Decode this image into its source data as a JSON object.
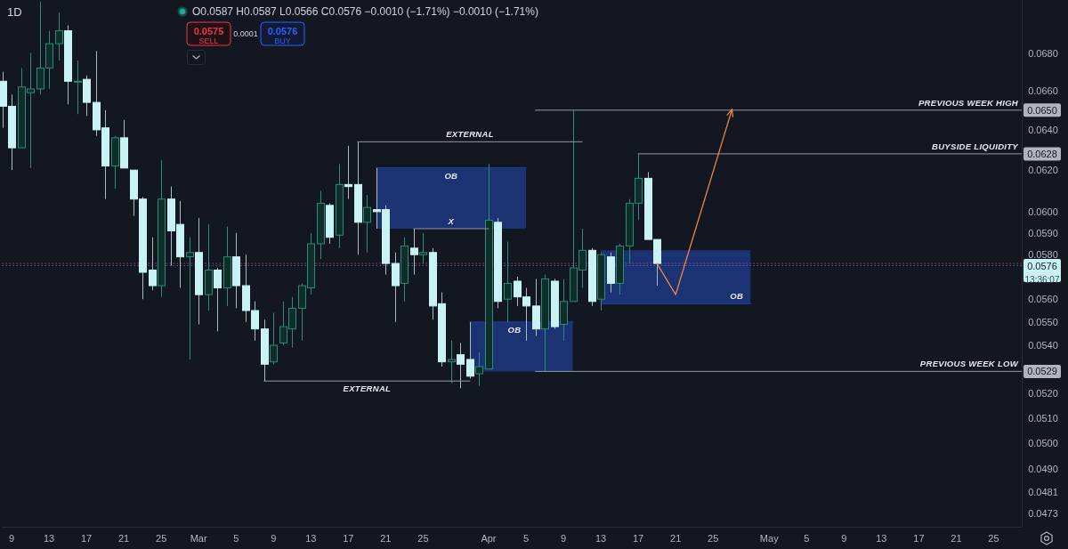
{
  "chart_data": {
    "type": "candlestick",
    "title": "1D",
    "subtitle": "O0.0587 H0.0587 L0.0566 C0.0576 −0.0010 (−1.71%) −0.0010 (−1.71%)",
    "x": [
      "--02-08",
      "--02-09",
      "--02-10",
      "--02-11",
      "--02-12",
      "--02-13",
      "--02-14",
      "--02-15",
      "--02-16",
      "--02-17",
      "--02-18",
      "--02-19",
      "--02-20",
      "--02-21",
      "--02-22",
      "--02-23",
      "--02-24",
      "--02-25",
      "--02-26",
      "--02-27",
      "--02-28",
      "--03-01",
      "--03-02",
      "--03-03",
      "--03-04",
      "--03-05",
      "--03-06",
      "--03-07",
      "--03-08",
      "--03-09",
      "--03-10",
      "--03-11",
      "--03-12",
      "--03-13",
      "--03-14",
      "--03-15",
      "--03-16",
      "--03-17",
      "--03-18",
      "--03-19",
      "--03-20",
      "--03-21",
      "--03-22",
      "--03-23",
      "--03-24",
      "--03-25",
      "--03-26",
      "--03-27",
      "--03-28",
      "--03-29",
      "--03-30",
      "--03-31",
      "--04-01",
      "--04-02",
      "--04-03",
      "--04-04",
      "--04-05",
      "--04-06",
      "--04-07",
      "--04-08",
      "--04-09",
      "--04-10",
      "--04-11",
      "--04-12",
      "--04-13",
      "--04-14",
      "--04-15",
      "--04-16",
      "--04-17",
      "--04-18",
      "--04-19"
    ],
    "ohlc": [
      [
        0.0665,
        0.067,
        0.0641,
        0.0652
      ],
      [
        0.0652,
        0.0658,
        0.062,
        0.0631
      ],
      [
        0.0631,
        0.0672,
        0.0631,
        0.0662
      ],
      [
        0.0659,
        0.068,
        0.0621,
        0.0661
      ],
      [
        0.0661,
        0.0708,
        0.0658,
        0.0672
      ],
      [
        0.0672,
        0.0692,
        0.0661,
        0.0685
      ],
      [
        0.0685,
        0.0702,
        0.0676,
        0.0692
      ],
      [
        0.0692,
        0.0695,
        0.0653,
        0.0665
      ],
      [
        0.0665,
        0.0676,
        0.0648,
        0.0665
      ],
      [
        0.0666,
        0.0668,
        0.0647,
        0.0654
      ],
      [
        0.0654,
        0.0681,
        0.0637,
        0.064
      ],
      [
        0.0641,
        0.065,
        0.0606,
        0.0622
      ],
      [
        0.0622,
        0.0637,
        0.0611,
        0.0636
      ],
      [
        0.0636,
        0.0645,
        0.0621,
        0.0621
      ],
      [
        0.062,
        0.062,
        0.0598,
        0.0606
      ],
      [
        0.0606,
        0.0607,
        0.056,
        0.0572
      ],
      [
        0.0573,
        0.0588,
        0.0564,
        0.0566
      ],
      [
        0.0566,
        0.0625,
        0.0561,
        0.0606
      ],
      [
        0.0606,
        0.0612,
        0.0575,
        0.0591
      ],
      [
        0.0594,
        0.0605,
        0.0565,
        0.0579
      ],
      [
        0.0579,
        0.0588,
        0.0534,
        0.0581
      ],
      [
        0.0581,
        0.0597,
        0.0549,
        0.0562
      ],
      [
        0.0562,
        0.0594,
        0.0555,
        0.0573
      ],
      [
        0.0573,
        0.0574,
        0.0546,
        0.0565
      ],
      [
        0.0565,
        0.0593,
        0.0557,
        0.0579
      ],
      [
        0.0579,
        0.059,
        0.0556,
        0.0566
      ],
      [
        0.0566,
        0.058,
        0.055,
        0.0555
      ],
      [
        0.0555,
        0.0559,
        0.0542,
        0.0547
      ],
      [
        0.0547,
        0.0551,
        0.0525,
        0.0532
      ],
      [
        0.0533,
        0.0554,
        0.0532,
        0.054
      ],
      [
        0.0541,
        0.0559,
        0.054,
        0.0548
      ],
      [
        0.0547,
        0.0561,
        0.0539,
        0.0556
      ],
      [
        0.0556,
        0.0567,
        0.0542,
        0.0566
      ],
      [
        0.0565,
        0.059,
        0.0562,
        0.0585
      ],
      [
        0.0585,
        0.061,
        0.0578,
        0.0604
      ],
      [
        0.0603,
        0.0604,
        0.0585,
        0.0588
      ],
      [
        0.0589,
        0.0623,
        0.0583,
        0.0613
      ],
      [
        0.0613,
        0.0632,
        0.0606,
        0.0612
      ],
      [
        0.0613,
        0.0634,
        0.058,
        0.0595
      ],
      [
        0.0595,
        0.0608,
        0.0581,
        0.0602
      ],
      [
        0.0601,
        0.0621,
        0.0592,
        0.06
      ],
      [
        0.0601,
        0.0603,
        0.0571,
        0.0576
      ],
      [
        0.0576,
        0.0581,
        0.055,
        0.0566
      ],
      [
        0.0567,
        0.0588,
        0.0559,
        0.0584
      ],
      [
        0.0583,
        0.0592,
        0.0571,
        0.058
      ],
      [
        0.058,
        0.059,
        0.0576,
        0.0581
      ],
      [
        0.0581,
        0.0583,
        0.0551,
        0.0557
      ],
      [
        0.0558,
        0.0563,
        0.0531,
        0.0533
      ],
      [
        0.0533,
        0.0542,
        0.0524,
        0.0534
      ],
      [
        0.0536,
        0.0541,
        0.0522,
        0.0532
      ],
      [
        0.0534,
        0.055,
        0.0526,
        0.0527
      ],
      [
        0.0528,
        0.0537,
        0.0523,
        0.0531
      ],
      [
        0.053,
        0.0623,
        0.053,
        0.0596
      ],
      [
        0.0595,
        0.0597,
        0.0556,
        0.0559
      ],
      [
        0.056,
        0.0586,
        0.055,
        0.0567
      ],
      [
        0.0568,
        0.057,
        0.0557,
        0.0561
      ],
      [
        0.0561,
        0.0565,
        0.0542,
        0.0557
      ],
      [
        0.0557,
        0.0569,
        0.0544,
        0.0547
      ],
      [
        0.0547,
        0.0571,
        0.0529,
        0.0569
      ],
      [
        0.0568,
        0.0569,
        0.0547,
        0.0548
      ],
      [
        0.0549,
        0.0569,
        0.0542,
        0.0559
      ],
      [
        0.0559,
        0.065,
        0.0559,
        0.0574
      ],
      [
        0.0573,
        0.0592,
        0.0565,
        0.0582
      ],
      [
        0.0582,
        0.0583,
        0.0557,
        0.0559
      ],
      [
        0.056,
        0.0581,
        0.0555,
        0.058
      ],
      [
        0.0579,
        0.0581,
        0.0563,
        0.0567
      ],
      [
        0.0567,
        0.0585,
        0.0562,
        0.0584
      ],
      [
        0.0584,
        0.0606,
        0.0576,
        0.0604
      ],
      [
        0.0604,
        0.0628,
        0.0596,
        0.0616
      ],
      [
        0.0616,
        0.0619,
        0.0587,
        0.0587
      ],
      [
        0.0587,
        0.0587,
        0.0566,
        0.0576
      ]
    ],
    "series": [
      {
        "type": "line",
        "name": "OB",
        "color": "#1e3a8a",
        "x": [
          "--03-20",
          "--04-05"
        ],
        "values": [
          0.0621,
          0.0621
        ],
        "lower": [
          0.0592,
          0.0592
        ],
        "upper": [
          0.0621,
          0.0621
        ]
      },
      {
        "type": "line",
        "name": "OB",
        "color": "#1e3a8a",
        "x": [
          "--03-30",
          "--04-10"
        ],
        "values": [
          0.055,
          0.055
        ],
        "lower": [
          0.0529,
          0.0529
        ],
        "upper": [
          0.055,
          0.055
        ]
      },
      {
        "type": "line",
        "name": "OB",
        "color": "#1e3a8a",
        "x": [
          "--04-13",
          "--04-29"
        ],
        "values": [
          0.0558,
          0.0558
        ],
        "lower": [
          0.0558,
          0.0558
        ],
        "upper": [
          0.0582,
          0.0582
        ]
      },
      {
        "type": "line",
        "name": "EXTERNAL",
        "color": "#9598a1",
        "x": [
          "--03-18",
          "--04-11"
        ],
        "values": [
          0.0634,
          0.0634
        ]
      },
      {
        "type": "line",
        "name": "EXTERNAL",
        "color": "#9598a1",
        "x": [
          "--03-08",
          "--03-30"
        ],
        "values": [
          0.0525,
          0.0525
        ]
      },
      {
        "type": "line",
        "name": "X",
        "color": "#9598a1",
        "x": [
          "--03-24",
          "--04-01"
        ],
        "values": [
          0.0592,
          0.0592
        ]
      },
      {
        "type": "line",
        "name": "PREVIOUS WEEK HIGH",
        "color": "#9598a1",
        "x": [
          "--04-06",
          "--05-28"
        ],
        "values": [
          0.065,
          0.065
        ],
        "value_labels": [
          null,
          "0.0650"
        ]
      },
      {
        "type": "line",
        "name": "BUYSIDE LIQUIDITY",
        "color": "#9598a1",
        "x": [
          "--04-17",
          "--05-28"
        ],
        "values": [
          0.0628,
          0.0628
        ],
        "value_labels": [
          null,
          "0.0628"
        ]
      },
      {
        "type": "line",
        "name": "PREVIOUS WEEK LOW",
        "color": "#9598a1",
        "x": [
          "--04-06",
          "--05-28"
        ],
        "values": [
          0.0529,
          0.0529
        ],
        "value_labels": [
          null,
          "0.0529"
        ]
      },
      {
        "type": "line",
        "color": "#f0883a",
        "x": [
          "--04-19",
          "--04-21",
          "--04-27"
        ],
        "values": [
          0.0576,
          0.0562,
          0.065
        ]
      }
    ],
    "ref_lines": [
      {
        "axis": "y",
        "value": 0.0576,
        "label": "0.0576",
        "color": "#a8414f",
        "line_style": "dotted"
      },
      {
        "axis": "y",
        "value": 0.0575,
        "color": "#3e63b8",
        "line_style": "dotted"
      }
    ],
    "annotations": [
      "0.0575",
      "SELL",
      "0.0001",
      "0.0576",
      "BUY",
      "13:36:07"
    ],
    "log": true,
    "xlim": [
      "--02-08",
      "--05-28"
    ],
    "xticks": [
      {
        "value": "--02-09",
        "label": "9"
      },
      {
        "value": "--02-13",
        "label": "13"
      },
      {
        "value": "--02-17",
        "label": "17"
      },
      {
        "value": "--02-21",
        "label": "21"
      },
      {
        "value": "--02-25",
        "label": "25"
      },
      {
        "value": "--03-01",
        "label": "Mar"
      },
      {
        "value": "--03-05",
        "label": "5"
      },
      {
        "value": "--03-09",
        "label": "9"
      },
      {
        "value": "--03-13",
        "label": "13"
      },
      {
        "value": "--03-17",
        "label": "17"
      },
      {
        "value": "--03-21",
        "label": "21"
      },
      {
        "value": "--03-25",
        "label": "25"
      },
      {
        "value": "--04-01",
        "label": "Apr"
      },
      {
        "value": "--04-05",
        "label": "5"
      },
      {
        "value": "--04-09",
        "label": "9"
      },
      {
        "value": "--04-13",
        "label": "13"
      },
      {
        "value": "--04-17",
        "label": "17"
      },
      {
        "value": "--04-21",
        "label": "21"
      },
      {
        "value": "--04-25",
        "label": "25"
      },
      {
        "value": "--05-01",
        "label": "May"
      },
      {
        "value": "--05-05",
        "label": "5"
      },
      {
        "value": "--05-09",
        "label": "9"
      },
      {
        "value": "--05-13",
        "label": "13"
      },
      {
        "value": "--05-17",
        "label": "17"
      },
      {
        "value": "--05-21",
        "label": "21"
      },
      {
        "value": "--05-25",
        "label": "25"
      }
    ],
    "ylim": [
      0.0468,
      0.0709
    ],
    "yticks": [
      {
        "value": 0.0473,
        "label": "0.0473"
      },
      {
        "value": 0.0481,
        "label": "0.0481"
      },
      {
        "value": 0.049,
        "label": "0.0490"
      },
      {
        "value": 0.05,
        "label": "0.0500"
      },
      {
        "value": 0.051,
        "label": "0.0510"
      },
      {
        "value": 0.052,
        "label": "0.0520"
      },
      {
        "value": 0.054,
        "label": "0.0540"
      },
      {
        "value": 0.055,
        "label": "0.0550"
      },
      {
        "value": 0.056,
        "label": "0.0560"
      },
      {
        "value": 0.058,
        "label": "0.0580"
      },
      {
        "value": 0.059,
        "label": "0.0590"
      },
      {
        "value": 0.06,
        "label": "0.0600"
      },
      {
        "value": 0.062,
        "label": "0.0620"
      },
      {
        "value": 0.064,
        "label": "0.0640"
      },
      {
        "value": 0.066,
        "label": "0.0660"
      },
      {
        "value": 0.068,
        "label": "0.0680"
      }
    ]
  }
}
